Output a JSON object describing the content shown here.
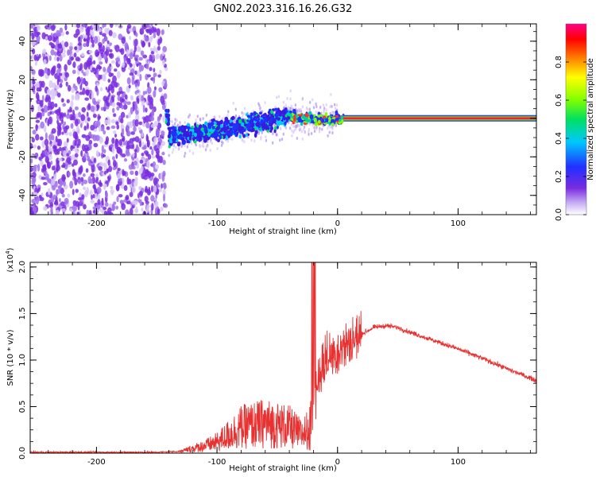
{
  "chart_data": [
    {
      "type": "heatmap",
      "title": "GN02.2023.316.16.26.G32",
      "xlabel": "Height of straight line (km)",
      "ylabel": "Frequency (Hz)",
      "xlim": [
        -255,
        165
      ],
      "ylim": [
        -50,
        49
      ],
      "x_ticks": [
        -200,
        -100,
        0,
        100
      ],
      "x_tick_labels": [
        "-200",
        "-100",
        "0",
        "100"
      ],
      "y_ticks": [
        -40,
        -20,
        0,
        20,
        40
      ],
      "y_tick_labels": [
        "-40",
        "-20",
        "0",
        "20",
        "40"
      ],
      "noise_region_x": [
        -255,
        -142
      ],
      "signal_trend": [
        {
          "x": -140,
          "f": -10
        },
        {
          "x": -120,
          "f": -8
        },
        {
          "x": -100,
          "f": -6
        },
        {
          "x": -80,
          "f": -4
        },
        {
          "x": -60,
          "f": -2
        },
        {
          "x": -45,
          "f": 2
        },
        {
          "x": -30,
          "f": 0
        },
        {
          "x": -10,
          "f": -1
        },
        {
          "x": 5,
          "f": 0
        },
        {
          "x": 165,
          "f": 0
        }
      ],
      "steady_band_x": [
        5,
        165
      ],
      "colorbar": {
        "label": "Normalized spectral amplitude",
        "min": 0.0,
        "max": 1.0,
        "ticks": [
          0.0,
          0.2,
          0.4,
          0.6,
          0.8
        ],
        "tick_labels": [
          "0.0",
          "0.2",
          "0.4",
          "0.6",
          "0.8"
        ]
      }
    },
    {
      "type": "line",
      "xlabel": "Height of straight line (km)",
      "ylabel": "SNR (10 * v/v)",
      "y_multiplier": "(x10",
      "y_multiplier_exp": "4",
      "y_multiplier_close": ")",
      "xlim": [
        -255,
        165
      ],
      "ylim": [
        0,
        2.05
      ],
      "x_ticks": [
        -200,
        -100,
        0,
        100
      ],
      "x_tick_labels": [
        "-200",
        "-100",
        "0",
        "100"
      ],
      "y_ticks": [
        0.0,
        0.5,
        1.0,
        1.5,
        2.0
      ],
      "y_tick_labels": [
        "0.0",
        "0.5",
        "1.0",
        "1.5",
        "2.0"
      ],
      "series": [
        {
          "name": "SNR",
          "color": "#e83232",
          "x": [
            -255,
            -200,
            -150,
            -130,
            -120,
            -110,
            -100,
            -90,
            -80,
            -70,
            -60,
            -50,
            -40,
            -30,
            -25,
            -20,
            -15,
            -10,
            -5,
            0,
            10,
            20,
            30,
            40,
            50,
            60,
            80,
            100,
            120,
            140,
            165
          ],
          "y": [
            0.01,
            0.01,
            0.01,
            0.02,
            0.05,
            0.08,
            0.12,
            0.2,
            0.28,
            0.3,
            0.32,
            0.3,
            0.28,
            0.2,
            0.25,
            0.55,
            0.85,
            1.0,
            1.05,
            1.1,
            1.18,
            1.28,
            1.35,
            1.37,
            1.35,
            1.3,
            1.21,
            1.12,
            1.02,
            0.91,
            0.78
          ]
        }
      ],
      "spike": {
        "x": -20,
        "y": 2.05
      }
    }
  ]
}
